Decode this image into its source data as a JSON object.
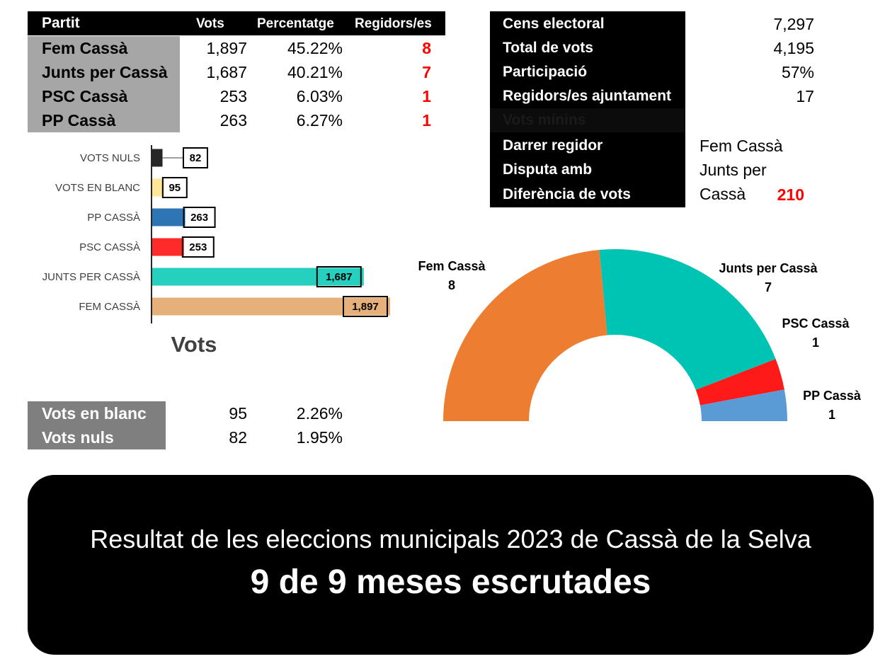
{
  "results_table": {
    "headers": [
      "Partit",
      "Vots",
      "Percentatge",
      "Regidors/es"
    ],
    "rows": [
      {
        "party": "Fem Cassà",
        "votes": "1,897",
        "pct": "45.22%",
        "seats": "8"
      },
      {
        "party": "Junts per Cassà",
        "votes": "1,687",
        "pct": "40.21%",
        "seats": "7"
      },
      {
        "party": "PSC Cassà",
        "votes": "253",
        "pct": "6.03%",
        "seats": "1"
      },
      {
        "party": "PP Cassà",
        "votes": "263",
        "pct": "6.27%",
        "seats": "1"
      }
    ]
  },
  "info": {
    "rows": [
      {
        "label": "Cens electoral",
        "value": "7,297"
      },
      {
        "label": "Total de vots",
        "value": "4,195"
      },
      {
        "label": "Participació",
        "value": "57%"
      },
      {
        "label": "Regidors/es ajuntament",
        "value": "17"
      }
    ],
    "hidden_label": "Vots mínins",
    "last_seat_label": "Darrer regidor",
    "last_seat_value": "Fem Cassà",
    "dispute_label": "Disputa amb",
    "dispute_value": "Junts per Cassà",
    "difference_label": "Diferència de vots",
    "difference_value": "210"
  },
  "blank_null": {
    "rows": [
      {
        "label": "Vots en blanc",
        "votes": "95",
        "pct": "2.26%"
      },
      {
        "label": "Vots nuls",
        "votes": "82",
        "pct": "1.95%"
      }
    ]
  },
  "banner": {
    "title": "Resultat de les eleccions municipals 2023 de Cassà de la Selva",
    "subtitle": "9 de 9 meses escrutades"
  },
  "chart_data": [
    {
      "type": "bar",
      "orientation": "horizontal",
      "title": "Vots",
      "categories": [
        "VOTS NULS",
        "VOTS EN BLANC",
        "PP CASSÀ",
        "PSC CASSÀ",
        "JUNTS PER CASSÀ",
        "FEM CASSÀ"
      ],
      "values": [
        82,
        95,
        263,
        253,
        1687,
        1897
      ],
      "value_labels": [
        "82",
        "95",
        "263",
        "253",
        "1,687",
        "1,897"
      ],
      "colors": [
        "#262626",
        "#ffe699",
        "#2e75b6",
        "#ff2a2a",
        "#26d0bf",
        "#e6b07a"
      ],
      "xlim": [
        0,
        1897
      ],
      "grid": false
    },
    {
      "type": "pie",
      "subtype": "half-donut",
      "categories": [
        "Fem Cassà",
        "Junts per Cassà",
        "PSC Cassà",
        "PP Cassà"
      ],
      "values": [
        8,
        7,
        1,
        1
      ],
      "colors": [
        "#ed7d31",
        "#00c4b3",
        "#ff1a1a",
        "#5b9bd5"
      ]
    }
  ]
}
